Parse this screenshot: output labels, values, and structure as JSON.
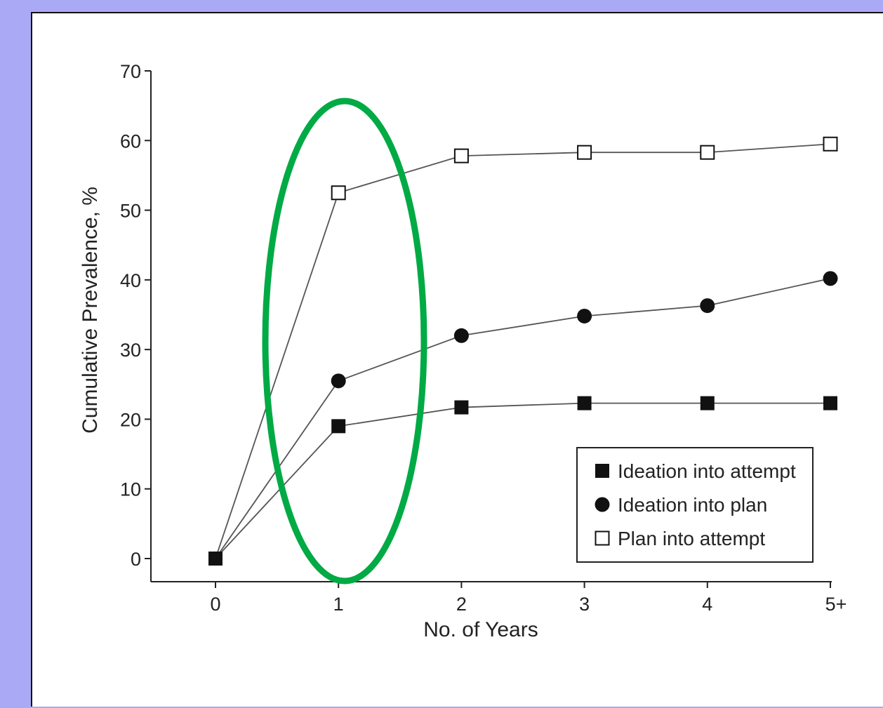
{
  "chart_data": {
    "type": "line",
    "title": "",
    "xlabel": "No. of Years",
    "ylabel": "Cumulative Prevalence, %",
    "categories": [
      "0",
      "1",
      "2",
      "3",
      "4",
      "5+"
    ],
    "yticks": [
      "0",
      "10",
      "20",
      "30",
      "40",
      "50",
      "60",
      "70"
    ],
    "ylim": [
      0,
      70
    ],
    "grid": false,
    "legend_position": "bottom-right",
    "series": [
      {
        "name": "Ideation into attempt",
        "marker": "filled-square",
        "values": [
          0,
          19,
          21.7,
          22.3,
          22.3,
          22.3
        ]
      },
      {
        "name": "Ideation into plan",
        "marker": "filled-circle",
        "values": [
          0,
          25.5,
          32,
          34.8,
          36.3,
          40.2
        ]
      },
      {
        "name": "Plan into attempt",
        "marker": "open-square",
        "values": [
          0,
          52.5,
          57.8,
          58.3,
          58.3,
          59.5
        ]
      }
    ],
    "annotations": [
      {
        "type": "ellipse",
        "color": "#00aa44",
        "highlights_category": "1"
      }
    ]
  },
  "colors": {
    "line": "#555555",
    "marker": "#111111",
    "highlight": "#00aa44",
    "outer_background": "#a9a9f5"
  }
}
